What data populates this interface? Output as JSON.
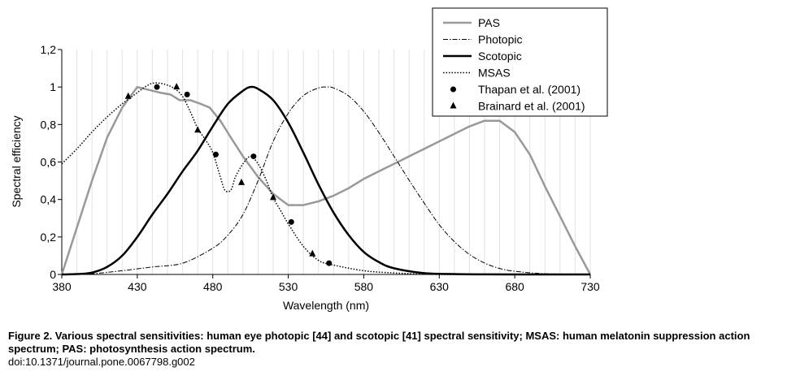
{
  "chart_data": {
    "type": "line",
    "xlabel": "Wavelength (nm)",
    "ylabel": "Spectral efficiency",
    "xlim": [
      380,
      730
    ],
    "ylim": [
      0,
      1.2
    ],
    "x_ticks": [
      380,
      430,
      480,
      530,
      580,
      630,
      680,
      730
    ],
    "x_tick_labels": [
      "380",
      "430",
      "480",
      "530",
      "580",
      "630",
      "680",
      "730"
    ],
    "y_ticks": [
      0,
      0.2,
      0.4,
      0.6,
      0.8,
      1,
      1.2
    ],
    "y_tick_labels": [
      "0",
      "0,2",
      "0,4",
      "0,6",
      "0,8",
      "1",
      "1,2"
    ],
    "grid": "vertical",
    "legend_position": "top-right",
    "series": [
      {
        "name": "PAS",
        "style": "solid-gray",
        "color": "#999999",
        "x": [
          380,
          400,
          410,
          420,
          430,
          445,
          452,
          458,
          465,
          472,
          478,
          485,
          492,
          500,
          510,
          520,
          530,
          540,
          550,
          560,
          570,
          580,
          590,
          600,
          610,
          620,
          630,
          640,
          650,
          660,
          670,
          680,
          690,
          700,
          710,
          720,
          730
        ],
        "y": [
          0,
          0.5,
          0.73,
          0.89,
          1.0,
          0.97,
          0.96,
          0.93,
          0.93,
          0.91,
          0.89,
          0.82,
          0.73,
          0.63,
          0.52,
          0.43,
          0.37,
          0.37,
          0.39,
          0.42,
          0.46,
          0.51,
          0.55,
          0.59,
          0.63,
          0.67,
          0.71,
          0.75,
          0.79,
          0.82,
          0.82,
          0.76,
          0.64,
          0.47,
          0.31,
          0.15,
          0
        ]
      },
      {
        "name": "Photopic",
        "style": "dash-dot",
        "color": "#000000",
        "x": [
          380,
          400,
          420,
          440,
          460,
          480,
          490,
          500,
          510,
          520,
          530,
          540,
          550,
          555,
          560,
          570,
          580,
          590,
          600,
          610,
          620,
          630,
          640,
          650,
          660,
          670,
          680,
          700,
          730
        ],
        "y": [
          0,
          0.004,
          0.02,
          0.04,
          0.06,
          0.14,
          0.21,
          0.32,
          0.5,
          0.71,
          0.86,
          0.954,
          0.995,
          1.0,
          0.995,
          0.952,
          0.87,
          0.757,
          0.631,
          0.503,
          0.381,
          0.265,
          0.175,
          0.107,
          0.061,
          0.032,
          0.017,
          0.004,
          0
        ]
      },
      {
        "name": "Scotopic",
        "style": "solid-black",
        "color": "#000000",
        "x": [
          380,
          390,
          400,
          410,
          420,
          430,
          440,
          450,
          460,
          470,
          480,
          490,
          500,
          505,
          510,
          520,
          530,
          540,
          550,
          560,
          570,
          580,
          590,
          600,
          620,
          640,
          660,
          700,
          730
        ],
        "y": [
          0,
          0.002,
          0.01,
          0.04,
          0.1,
          0.2,
          0.32,
          0.43,
          0.55,
          0.66,
          0.79,
          0.91,
          0.98,
          1.0,
          0.99,
          0.93,
          0.81,
          0.65,
          0.48,
          0.33,
          0.21,
          0.12,
          0.066,
          0.033,
          0.007,
          0.002,
          0.0003,
          0,
          0
        ]
      },
      {
        "name": "MSAS",
        "style": "dotted",
        "color": "#000000",
        "x": [
          380,
          390,
          400,
          410,
          420,
          430,
          435,
          440,
          445,
          450,
          455,
          460,
          465,
          470,
          475,
          480,
          485,
          488,
          492,
          495,
          500,
          505,
          510,
          515,
          520,
          525,
          530,
          540,
          550,
          560,
          580,
          600,
          630,
          680,
          730
        ],
        "y": [
          0.59,
          0.67,
          0.76,
          0.84,
          0.91,
          0.97,
          1.0,
          1.02,
          1.02,
          1.01,
          0.99,
          0.95,
          0.87,
          0.78,
          0.72,
          0.65,
          0.52,
          0.45,
          0.45,
          0.52,
          0.59,
          0.63,
          0.59,
          0.51,
          0.41,
          0.34,
          0.27,
          0.15,
          0.075,
          0.05,
          0.02,
          0.008,
          0,
          0,
          0
        ]
      }
    ],
    "scatter_series": [
      {
        "name": "Thapan et al. (2001)",
        "marker": "circle",
        "x": [
          443,
          463,
          482,
          507,
          532,
          557
        ],
        "y": [
          1.0,
          0.96,
          0.64,
          0.63,
          0.28,
          0.06
        ]
      },
      {
        "name": "Brainard et al. (2001)",
        "marker": "triangle",
        "x": [
          424,
          456,
          470,
          499,
          520,
          546
        ],
        "y": [
          0.95,
          1.0,
          0.77,
          0.49,
          0.41,
          0.11
        ]
      }
    ]
  },
  "caption": {
    "bold": "Figure 2. Various spectral sensitivities: human eye photopic [44] and scotopic [41] spectral sensitivity; MSAS: human melatonin suppression action spectrum; PAS: photosynthesis action spectrum.",
    "doi": "doi:10.1371/journal.pone.0067798.g002"
  }
}
